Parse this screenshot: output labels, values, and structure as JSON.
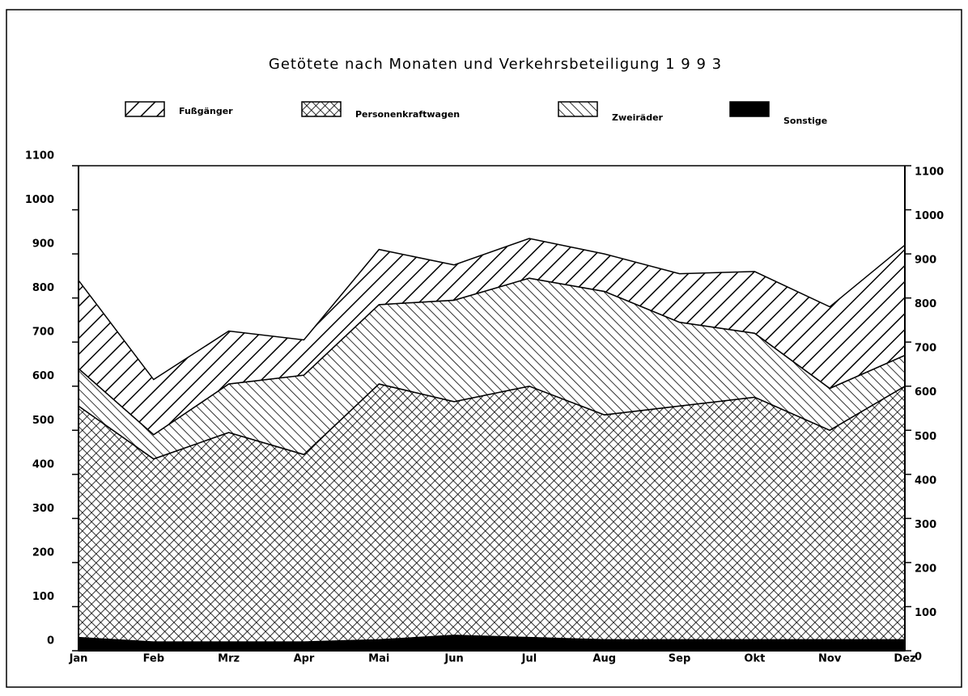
{
  "chart_data": {
    "type": "stacked_area",
    "title": "Getötete nach Monaten und Verkehrsbeteiligung 1 9 9 3",
    "categories": [
      "Jan",
      "Feb",
      "Mrz",
      "Apr",
      "Mai",
      "Jun",
      "Jul",
      "Aug",
      "Sep",
      "Okt",
      "Nov",
      "Dez"
    ],
    "series": [
      {
        "name": "Sonstige",
        "color": "#000000",
        "pattern": "solid",
        "values": [
          30,
          20,
          20,
          20,
          25,
          35,
          30,
          25,
          25,
          25,
          25,
          25
        ]
      },
      {
        "name": "Personenkraftwagen",
        "color": "#000000",
        "pattern": "crosshatch",
        "values": [
          525,
          415,
          475,
          425,
          580,
          530,
          570,
          510,
          530,
          550,
          475,
          575
        ]
      },
      {
        "name": "Zweiräder",
        "color": "#000000",
        "pattern": "slash",
        "values": [
          85,
          55,
          110,
          180,
          180,
          230,
          245,
          280,
          190,
          145,
          95,
          70
        ]
      },
      {
        "name": "Fußgänger",
        "color": "#000000",
        "pattern": "backslash",
        "values": [
          200,
          125,
          120,
          80,
          125,
          80,
          90,
          85,
          110,
          140,
          185,
          250
        ]
      }
    ],
    "legend_order": [
      "Fußgänger",
      "Personenkraftwagen",
      "Zweiräder",
      "Sonstige"
    ],
    "ylim": [
      0,
      1100
    ],
    "yticks": [
      0,
      100,
      200,
      300,
      400,
      500,
      600,
      700,
      800,
      900,
      1000,
      1100
    ],
    "y2lim": [
      0,
      1100
    ],
    "y2ticks": [
      0,
      100,
      200,
      300,
      400,
      500,
      600,
      700,
      800,
      900,
      1000,
      1100
    ]
  }
}
